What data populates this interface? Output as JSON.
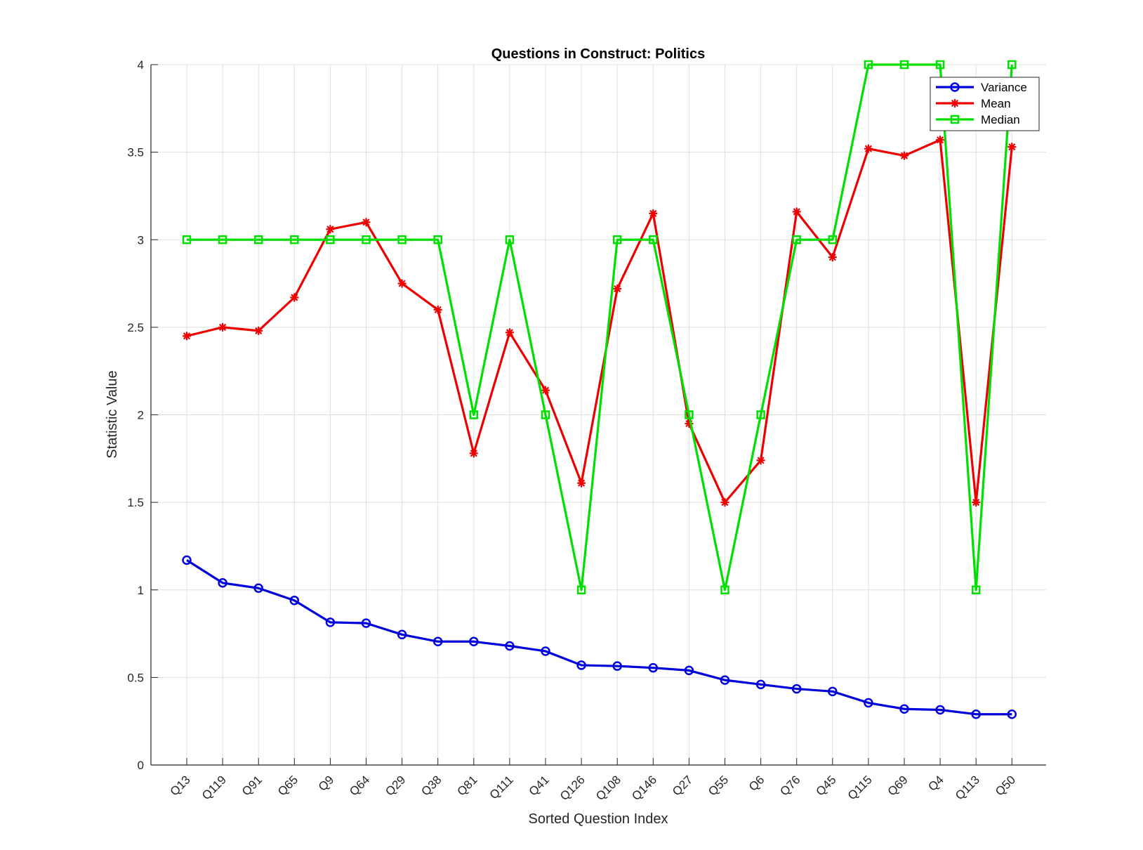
{
  "chart_data": {
    "type": "line",
    "title": "Questions in Construct: Politics",
    "xlabel": "Sorted Question Index",
    "ylabel": "Statistic Value",
    "ylim": [
      0,
      4
    ],
    "yticks": [
      "0",
      "0.5",
      "1",
      "1.5",
      "2",
      "2.5",
      "3",
      "3.5",
      "4"
    ],
    "grid": true,
    "legend_position": "top-right",
    "categories": [
      "Q13",
      "Q119",
      "Q91",
      "Q65",
      "Q9",
      "Q64",
      "Q29",
      "Q38",
      "Q81",
      "Q111",
      "Q41",
      "Q126",
      "Q108",
      "Q146",
      "Q27",
      "Q55",
      "Q6",
      "Q76",
      "Q45",
      "Q115",
      "Q69",
      "Q4",
      "Q113",
      "Q50"
    ],
    "series": [
      {
        "name": "Variance",
        "color": "#0000dd",
        "marker": "circle",
        "values": [
          1.17,
          1.04,
          1.01,
          0.94,
          0.815,
          0.81,
          0.745,
          0.705,
          0.705,
          0.68,
          0.65,
          0.57,
          0.565,
          0.555,
          0.54,
          0.485,
          0.46,
          0.435,
          0.42,
          0.355,
          0.32,
          0.315,
          0.29,
          0.29
        ]
      },
      {
        "name": "Mean",
        "color": "#ee0000",
        "marker": "asterisk",
        "values": [
          2.45,
          2.5,
          2.48,
          2.67,
          3.06,
          3.1,
          2.75,
          2.6,
          1.78,
          2.47,
          2.14,
          1.61,
          2.72,
          3.15,
          1.95,
          1.5,
          1.74,
          3.16,
          2.9,
          3.52,
          3.48,
          3.57,
          1.5,
          3.53
        ]
      },
      {
        "name": "Median",
        "color": "#00e000",
        "marker": "square",
        "values": [
          3,
          3,
          3,
          3,
          3,
          3,
          3,
          3,
          2,
          3,
          2,
          1,
          3,
          3,
          2,
          1,
          2,
          3,
          3,
          4,
          4,
          4,
          1,
          4
        ]
      }
    ]
  }
}
